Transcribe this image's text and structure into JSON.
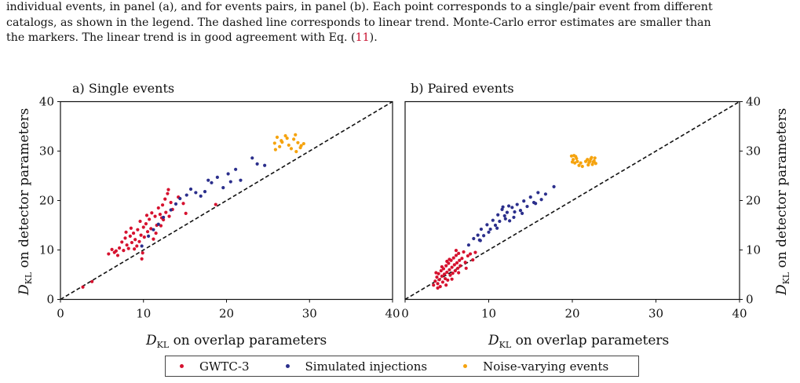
{
  "caption": {
    "line1": "individual events, in panel (a), and for events pairs, in panel (b). Each point corresponds to a single/pair event from different",
    "line2": "catalogs, as shown in the legend. The dashed line corresponds to linear trend. Monte-Carlo error estimates are smaller than",
    "line3_pre": "the markers. The linear trend is in good agreement with Eq. (",
    "line3_ref": "11",
    "line3_post": ")."
  },
  "panels": {
    "a_title": "a) Single events",
    "b_title": "b) Paired events"
  },
  "axes": {
    "xlabel_sub": "KL",
    "xlabel_rest": " on overlap parameters",
    "ylabel_sub": "KL",
    "ylabel_rest": " on detector parameters",
    "D": "D"
  },
  "legend": {
    "gwtc": "GWTC-3",
    "sim": "Simulated injections",
    "noise": "Noise-varying events"
  },
  "colors": {
    "gwtc": "#d6122f",
    "sim": "#2b2f8c",
    "noise": "#f5a30e"
  },
  "chart_data": [
    {
      "type": "scatter",
      "title": "a) Single events",
      "xlabel": "D_KL on overlap parameters",
      "ylabel": "D_KL on detector parameters",
      "xlim": [
        0,
        40
      ],
      "ylim": [
        0,
        40
      ],
      "xticks": [
        "0",
        "10",
        "20",
        "30",
        "40"
      ],
      "yticks": [
        "0",
        "10",
        "20",
        "30",
        "40"
      ],
      "series": [
        {
          "name": "GWTC-3",
          "points": [
            [
              2.7,
              2.5
            ],
            [
              3.8,
              3.6
            ],
            [
              5.8,
              9.2
            ],
            [
              6.2,
              10.1
            ],
            [
              6.5,
              9.5
            ],
            [
              6.9,
              8.9
            ],
            [
              7.1,
              10.4
            ],
            [
              7.4,
              11.6
            ],
            [
              7.6,
              9.9
            ],
            [
              7.8,
              12.4
            ],
            [
              8.0,
              11.0
            ],
            [
              8.2,
              10.3
            ],
            [
              8.4,
              12.8
            ],
            [
              8.6,
              11.5
            ],
            [
              8.8,
              13.4
            ],
            [
              9.0,
              12.1
            ],
            [
              9.2,
              10.8
            ],
            [
              9.3,
              14.1
            ],
            [
              9.5,
              11.7
            ],
            [
              9.7,
              13.0
            ],
            [
              9.8,
              8.2
            ],
            [
              9.9,
              9.4
            ],
            [
              10.0,
              14.6
            ],
            [
              10.1,
              12.6
            ],
            [
              10.3,
              15.3
            ],
            [
              10.5,
              13.7
            ],
            [
              10.7,
              16.2
            ],
            [
              10.9,
              14.3
            ],
            [
              11.0,
              17.5
            ],
            [
              11.2,
              12.2
            ],
            [
              11.4,
              16.8
            ],
            [
              11.6,
              15.0
            ],
            [
              11.8,
              18.5
            ],
            [
              12.0,
              17.2
            ],
            [
              12.1,
              14.9
            ],
            [
              12.3,
              19.1
            ],
            [
              12.4,
              16.1
            ],
            [
              12.6,
              20.3
            ],
            [
              12.7,
              17.6
            ],
            [
              12.9,
              21.4
            ],
            [
              13.1,
              16.8
            ],
            [
              13.3,
              19.6
            ],
            [
              13.0,
              22.2
            ],
            [
              13.5,
              18.2
            ],
            [
              14.2,
              20.7
            ],
            [
              14.8,
              19.4
            ],
            [
              15.1,
              17.4
            ],
            [
              18.7,
              19.2
            ],
            [
              7.9,
              13.6
            ],
            [
              8.5,
              14.4
            ],
            [
              9.6,
              15.8
            ],
            [
              10.4,
              17.0
            ],
            [
              6.7,
              9.8
            ],
            [
              8.9,
              10.2
            ],
            [
              11.5,
              13.4
            ],
            [
              12.2,
              16.5
            ]
          ]
        },
        {
          "name": "Simulated injections",
          "points": [
            [
              9.8,
              10.8
            ],
            [
              10.6,
              12.8
            ],
            [
              11.2,
              14.1
            ],
            [
              11.8,
              15.2
            ],
            [
              12.4,
              16.6
            ],
            [
              13.3,
              18.1
            ],
            [
              13.9,
              19.3
            ],
            [
              14.4,
              20.4
            ],
            [
              15.2,
              21.1
            ],
            [
              15.7,
              22.3
            ],
            [
              16.3,
              21.6
            ],
            [
              16.9,
              20.9
            ],
            [
              17.4,
              21.8
            ],
            [
              18.2,
              23.6
            ],
            [
              18.9,
              24.7
            ],
            [
              19.6,
              22.6
            ],
            [
              20.2,
              25.4
            ],
            [
              21.1,
              26.3
            ],
            [
              21.7,
              24.1
            ],
            [
              23.1,
              28.6
            ],
            [
              23.7,
              27.4
            ],
            [
              24.6,
              27.1
            ],
            [
              20.5,
              23.8
            ],
            [
              17.8,
              24.1
            ]
          ]
        },
        {
          "name": "Noise-varying events",
          "points": [
            [
              25.8,
              31.6
            ],
            [
              26.1,
              32.8
            ],
            [
              26.4,
              30.9
            ],
            [
              26.7,
              31.8
            ],
            [
              27.1,
              33.1
            ],
            [
              27.5,
              31.2
            ],
            [
              27.8,
              30.5
            ],
            [
              28.1,
              32.4
            ],
            [
              28.3,
              33.3
            ],
            [
              28.6,
              31.7
            ],
            [
              28.9,
              30.7
            ],
            [
              29.3,
              31.5
            ],
            [
              25.9,
              30.3
            ],
            [
              26.6,
              32.1
            ],
            [
              27.3,
              32.6
            ],
            [
              28.4,
              29.9
            ],
            [
              29.0,
              31.1
            ]
          ]
        }
      ],
      "reference_line": "linear trend (dashed)",
      "grid": false,
      "legend_position": "bottom"
    },
    {
      "type": "scatter",
      "title": "b) Paired events",
      "xlabel": "D_KL on overlap parameters",
      "ylabel": "D_KL on detector parameters",
      "xlim": [
        0,
        40
      ],
      "ylim": [
        0,
        40
      ],
      "xticks": [
        "0",
        "10",
        "20",
        "30",
        "40"
      ],
      "yticks": [
        "0",
        "10",
        "20",
        "30",
        "40"
      ],
      "y_axis_side": "right",
      "series": [
        {
          "name": "GWTC-3",
          "points": [
            [
              3.4,
              2.9
            ],
            [
              3.6,
              3.7
            ],
            [
              3.8,
              4.5
            ],
            [
              3.9,
              3.2
            ],
            [
              4.0,
              5.2
            ],
            [
              4.1,
              4.0
            ],
            [
              4.2,
              2.6
            ],
            [
              4.3,
              5.8
            ],
            [
              4.4,
              4.7
            ],
            [
              4.5,
              3.5
            ],
            [
              4.6,
              6.2
            ],
            [
              4.7,
              5.1
            ],
            [
              4.8,
              4.2
            ],
            [
              4.9,
              6.8
            ],
            [
              5.0,
              5.5
            ],
            [
              5.1,
              3.9
            ],
            [
              5.2,
              7.3
            ],
            [
              5.3,
              6.0
            ],
            [
              5.4,
              4.9
            ],
            [
              5.5,
              7.9
            ],
            [
              5.6,
              6.5
            ],
            [
              5.7,
              5.3
            ],
            [
              5.8,
              8.4
            ],
            [
              5.9,
              7.0
            ],
            [
              6.0,
              5.8
            ],
            [
              6.1,
              8.9
            ],
            [
              6.2,
              7.4
            ],
            [
              6.3,
              6.3
            ],
            [
              6.4,
              9.3
            ],
            [
              6.5,
              7.9
            ],
            [
              6.6,
              6.8
            ],
            [
              6.8,
              8.3
            ],
            [
              7.0,
              9.6
            ],
            [
              7.2,
              7.5
            ],
            [
              7.5,
              8.8
            ],
            [
              7.8,
              9.2
            ],
            [
              8.1,
              8.0
            ],
            [
              8.4,
              9.5
            ],
            [
              3.7,
              5.4
            ],
            [
              4.4,
              6.6
            ],
            [
              5.3,
              8.1
            ],
            [
              6.1,
              9.9
            ],
            [
              4.9,
              2.9
            ],
            [
              5.6,
              4.1
            ],
            [
              6.4,
              5.4
            ],
            [
              7.3,
              6.3
            ],
            [
              3.9,
              2.3
            ],
            [
              5.0,
              7.7
            ]
          ]
        },
        {
          "name": "Simulated injections",
          "points": [
            [
              7.6,
              11.0
            ],
            [
              8.2,
              12.3
            ],
            [
              8.7,
              13.0
            ],
            [
              9.1,
              14.2
            ],
            [
              9.4,
              12.9
            ],
            [
              9.8,
              15.1
            ],
            [
              10.2,
              14.2
            ],
            [
              10.5,
              16.0
            ],
            [
              10.8,
              15.0
            ],
            [
              11.1,
              17.1
            ],
            [
              11.3,
              15.8
            ],
            [
              11.6,
              18.2
            ],
            [
              11.9,
              16.9
            ],
            [
              12.2,
              17.6
            ],
            [
              12.5,
              15.9
            ],
            [
              12.8,
              18.6
            ],
            [
              13.1,
              17.7
            ],
            [
              13.4,
              19.2
            ],
            [
              13.8,
              18.0
            ],
            [
              14.2,
              19.9
            ],
            [
              14.6,
              18.8
            ],
            [
              15.0,
              20.7
            ],
            [
              15.4,
              19.6
            ],
            [
              15.9,
              21.6
            ],
            [
              16.3,
              20.2
            ],
            [
              16.8,
              21.3
            ],
            [
              17.8,
              22.8
            ],
            [
              10.0,
              13.6
            ],
            [
              11.0,
              14.4
            ],
            [
              12.0,
              16.3
            ],
            [
              13.0,
              16.6
            ],
            [
              9.0,
              11.9
            ],
            [
              14.0,
              17.4
            ],
            [
              8.9,
              12.0
            ],
            [
              11.7,
              18.7
            ],
            [
              12.4,
              18.9
            ],
            [
              15.6,
              19.4
            ]
          ]
        },
        {
          "name": "Noise-varying events",
          "points": [
            [
              19.9,
              29.0
            ],
            [
              20.1,
              28.3
            ],
            [
              20.3,
              27.6
            ],
            [
              20.4,
              28.9
            ],
            [
              20.6,
              27.9
            ],
            [
              20.8,
              27.1
            ],
            [
              21.0,
              27.6
            ],
            [
              21.2,
              26.9
            ],
            [
              20.2,
              29.1
            ],
            [
              20.0,
              27.8
            ],
            [
              20.5,
              28.5
            ],
            [
              21.8,
              28.3
            ],
            [
              22.0,
              27.7
            ],
            [
              22.2,
              28.4
            ],
            [
              22.4,
              27.3
            ],
            [
              22.6,
              28.0
            ],
            [
              22.8,
              27.5
            ],
            [
              21.9,
              27.2
            ],
            [
              22.3,
              28.7
            ],
            [
              22.7,
              28.6
            ],
            [
              22.1,
              27.9
            ],
            [
              22.5,
              27.8
            ],
            [
              21.6,
              27.9
            ]
          ]
        }
      ],
      "reference_line": "linear trend (dashed)",
      "grid": false,
      "legend_position": "bottom"
    }
  ]
}
